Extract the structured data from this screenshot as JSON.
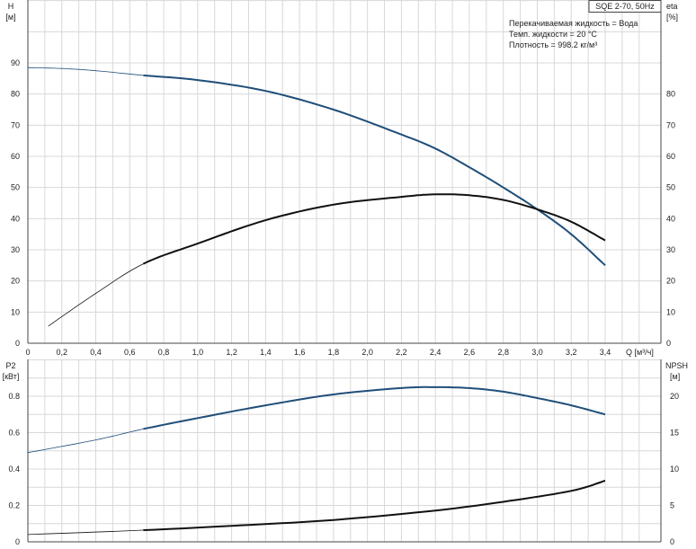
{
  "chart_data": [
    {
      "type": "line",
      "title": "SQE 2-70, 50Hz",
      "annotations": [
        "Перекачиваемая жидкость = Вода",
        "Темп. жидкости = 20 °C",
        "Плотность = 998.2 кг/м³"
      ],
      "xlabel": "Q [м³/ч]",
      "ylabel_left": [
        "H",
        "[м]"
      ],
      "ylabel_right": [
        "eta",
        "[%]"
      ],
      "xlim": [
        0,
        3.7
      ],
      "ylim": [
        0,
        110
      ],
      "xticks": [
        "0",
        "0,2",
        "0,4",
        "0,6",
        "0,8",
        "1,0",
        "1,2",
        "1,4",
        "1,6",
        "1,8",
        "2,0",
        "2,2",
        "2,4",
        "2,6",
        "2,8",
        "3,0",
        "3,2",
        "3,4"
      ],
      "yticks_left": [
        "0",
        "10",
        "20",
        "30",
        "40",
        "50",
        "60",
        "70",
        "80",
        "90"
      ],
      "yticks_right": [
        "0",
        "10",
        "20",
        "30",
        "40",
        "50",
        "60",
        "70",
        "80"
      ],
      "grid": true,
      "series": [
        {
          "name": "H",
          "color": "#1f4e79",
          "x": [
            0,
            0.2,
            0.4,
            0.68,
            1.0,
            1.4,
            1.8,
            2.2,
            2.4,
            2.6,
            2.8,
            3.0,
            3.2,
            3.4
          ],
          "y": [
            88.5,
            88.2,
            87.5,
            86,
            84.5,
            81,
            75,
            67,
            62.5,
            56.5,
            50,
            43,
            35,
            25
          ]
        },
        {
          "name": "eta",
          "color": "#111111",
          "x": [
            0.12,
            0.4,
            0.68,
            1.0,
            1.4,
            1.8,
            2.2,
            2.4,
            2.6,
            2.8,
            3.0,
            3.2,
            3.4
          ],
          "y": [
            5.5,
            16,
            25.5,
            32,
            39.5,
            44.5,
            47,
            47.8,
            47.5,
            46,
            43,
            39,
            33
          ]
        }
      ]
    },
    {
      "type": "line",
      "ylabel_left": [
        "P2",
        "[кВт]"
      ],
      "ylabel_right": [
        "NPSH",
        "[м]"
      ],
      "xlim": [
        0,
        3.7
      ],
      "ylim_left": [
        0,
        1.0
      ],
      "ylim_right": [
        0,
        25
      ],
      "yticks_left": [
        "0",
        "0.2",
        "0.4",
        "0.6",
        "0.8"
      ],
      "yticks_right": [
        "0",
        "5",
        "10",
        "15",
        "20"
      ],
      "grid": true,
      "series": [
        {
          "name": "P2",
          "axis": "left",
          "color": "#1f4e79",
          "x": [
            0,
            0.4,
            0.68,
            1.0,
            1.4,
            1.8,
            2.2,
            2.4,
            2.6,
            2.8,
            3.0,
            3.2,
            3.4
          ],
          "y": [
            0.49,
            0.56,
            0.62,
            0.68,
            0.75,
            0.81,
            0.845,
            0.85,
            0.845,
            0.825,
            0.79,
            0.75,
            0.7
          ]
        },
        {
          "name": "NPSH",
          "axis": "right",
          "color": "#111111",
          "x": [
            0,
            0.68,
            1.2,
            1.8,
            2.4,
            2.8,
            3.2,
            3.4
          ],
          "y": [
            1.0,
            1.6,
            2.2,
            3.0,
            4.3,
            5.5,
            7.0,
            8.4
          ]
        }
      ]
    }
  ]
}
